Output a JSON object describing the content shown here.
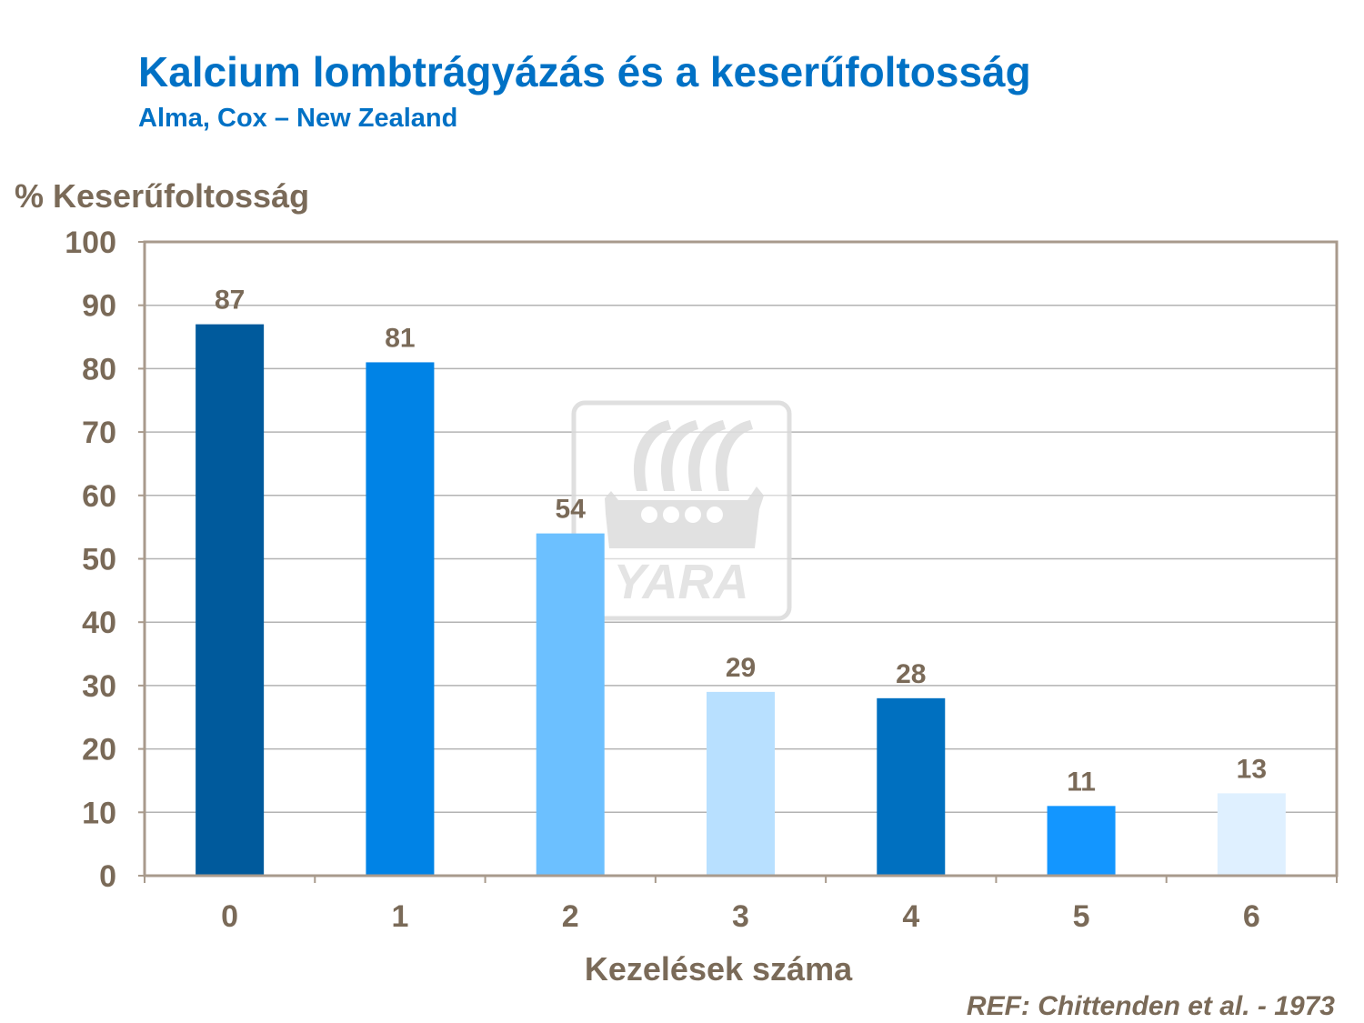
{
  "title": "Kalcium lombtrágyázás és a keserűfoltosság",
  "subtitle": "Alma, Cox – New Zealand",
  "reference": "REF: Chittenden et al. - 1973",
  "watermark": {
    "logo": "YARA",
    "icon": "viking-ship-icon"
  },
  "colors": {
    "text": "#7a6a58",
    "title": "#0071c5",
    "axis": "#a89a8c",
    "grid": "#b3b3b3"
  },
  "chart_data": {
    "type": "bar",
    "ylabel": "% Keserűfoltosság",
    "xlabel": "Kezelések száma",
    "categories": [
      "0",
      "1",
      "2",
      "3",
      "4",
      "5",
      "6"
    ],
    "values": [
      87,
      81,
      54,
      29,
      28,
      11,
      13
    ],
    "data_labels": [
      "87",
      "81",
      "54",
      "29",
      "28",
      "11",
      "13"
    ],
    "bar_colors": [
      "#005a9c",
      "#0083e6",
      "#6cc0ff",
      "#b8e0ff",
      "#0070c0",
      "#1396ff",
      "#dff0ff"
    ],
    "ylim": [
      0,
      100
    ],
    "yticks": [
      0,
      10,
      20,
      30,
      40,
      50,
      60,
      70,
      80,
      90,
      100
    ],
    "grid": true,
    "legend": "none"
  }
}
